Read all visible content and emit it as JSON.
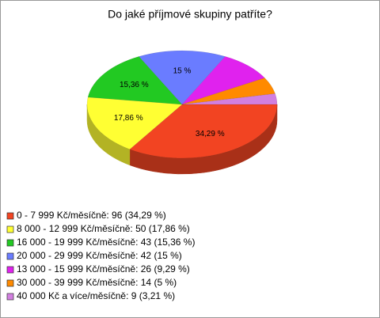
{
  "chart_data": {
    "type": "pie",
    "title": "Do jaké příjmové skupiny patříte?",
    "categories": [
      "0 - 7 999 Kč/měsíčně: 96 (34,29 %)",
      "8 000 - 12 999 Kč/měsíčně: 50 (17,86 %)",
      "16 000 - 19 999 Kč/měsíčně: 43 (15,36 %)",
      "20 000 - 29 999 Kč/měsíčně: 42 (15 %)",
      "13 000 - 15 999 Kč/měsíčně: 26 (9,29 %)",
      "30 000 - 39 999 Kč/měsíčně: 14 (5 %)",
      "40 000 Kč a více/měsíčně: 9 (3,21 %)"
    ],
    "values": [
      34.29,
      17.86,
      15.36,
      15,
      9.29,
      5,
      3.21
    ],
    "value_labels": [
      "34,29 %",
      "17,86 %",
      "15,36 %",
      "15 %",
      null,
      null,
      null
    ],
    "colors": [
      "#f24422",
      "#ffff33",
      "#22c922",
      "#6a7cff",
      "#e022ee",
      "#ff8a00",
      "#d27fe0"
    ],
    "legend": "bottom-left"
  }
}
